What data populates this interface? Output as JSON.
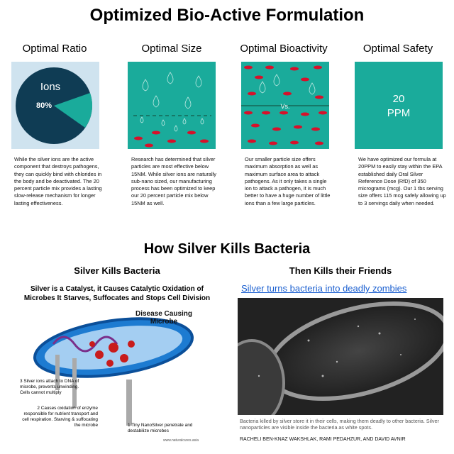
{
  "header": {
    "title": "Optimized Bio-Active Formulation"
  },
  "columns": [
    {
      "heading": "Optimal Ratio",
      "image_label": "Ions",
      "image_value": "80%",
      "text": "While the silver ions are the active component that destroys pathogens, they can quickly bind with chlorides in the body and be deactivated. The 20 percent particle mix provides a lasting slow-release mechanism for longer lasting effectiveness."
    },
    {
      "heading": "Optimal Size",
      "text": "Research has determined that silver particles are most effective below 15NM. While silver ions are naturally sub-nano sized, our manufacturing process has been optimized to keep our 20 percent particle mix below 15NM as well."
    },
    {
      "heading": "Optimal Bioactivity",
      "image_label": "Vs.",
      "text": "Our smaller particle size offers maximum absorption as well as maximum surface area to attack pathogens. As it only takes a single ion to attack a pathogen, it is much better to have a huge number of little ions than a few large particles."
    },
    {
      "heading": "Optimal Safety",
      "image_value": "20",
      "image_unit": "PPM",
      "text": "We have optimized our formula at 20PPM to easily stay within the EPA established daily Oral Silver Reference Dose (RfD) of 350 micrograms (mcg). Our 1 tbs serving size offers 115 mcg safely allowing up to 3 servings daily when needed."
    }
  ],
  "section": {
    "title": "How Silver Kills Bacteria"
  },
  "left": {
    "title": "Silver Kills Bacteria",
    "subtitle": "Silver is a Catalyst, it Causes Catalytic Oxidation of Microbes It Starves, Suffocates and Stops Cell Division",
    "microbe": "Disease Causing Microbe",
    "step3": "3 Silver ions attach to DNA of microbe, prevents unwinding. Cells cannot multiply",
    "step2": "2 Causes oxidation of enzyme responsible for nutrient transport and cell respiration. Starving & suffocating the microbe",
    "step1": "1 Tiny NanoSilver penetrate and destabilize microbes",
    "source": "www.naturalcures.asia"
  },
  "right": {
    "title": "Then Kills their Friends",
    "link": "Silver turns bacteria into deadly zombies",
    "caption": "Bacteria killed by silver store it in their cells, making them deadly to other bacteria. Silver nanoparticles are visible inside the bacteria as white spots.",
    "credit": "RACHELI BEN-KNAZ WAKSHLAK, RAMI PEDAHZUR, AND DAVID AVNIR"
  }
}
